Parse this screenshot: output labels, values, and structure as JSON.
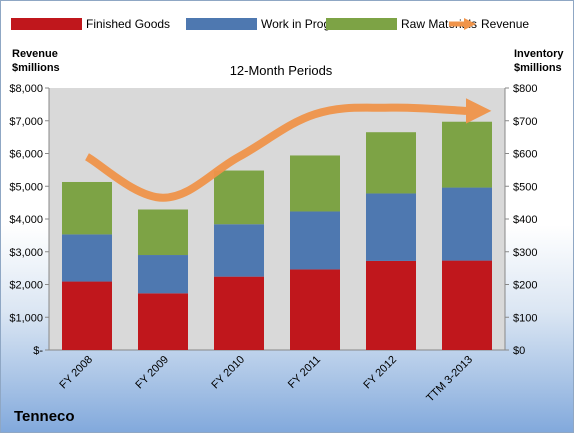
{
  "chart_data": {
    "type": "bar",
    "stacked": true,
    "title": "12-Month Periods",
    "company": "Tenneco",
    "categories": [
      "FY 2008",
      "FY 2009",
      "FY 2010",
      "FY 2011",
      "FY 2012",
      "TTM 3-2013"
    ],
    "series": [
      {
        "name": "Finished Goods",
        "axis": "right",
        "color": "#c0171c",
        "values": [
          209,
          173,
          224,
          246,
          272,
          273
        ]
      },
      {
        "name": "Work in Progress",
        "axis": "right",
        "color": "#4e78b0",
        "values": [
          144,
          117,
          160,
          177,
          206,
          223
        ]
      },
      {
        "name": "Raw Materials",
        "axis": "right",
        "color": "#7da345",
        "values": [
          160,
          139,
          164,
          171,
          187,
          201
        ]
      },
      {
        "name": "Revenue",
        "axis": "left",
        "type": "line",
        "color": "#f0944a",
        "values": [
          5900,
          4650,
          5900,
          7200,
          7400,
          7300
        ]
      }
    ],
    "left_axis": {
      "title_line1": "Revenue",
      "title_line2": "$millions",
      "ylim": [
        0,
        8000
      ],
      "tick_labels": [
        "$-",
        "$1,000",
        "$2,000",
        "$3,000",
        "$4,000",
        "$5,000",
        "$6,000",
        "$7,000",
        "$8,000"
      ]
    },
    "right_axis": {
      "title_line1": "Inventory",
      "title_line2": "$millions",
      "ylim": [
        0,
        800
      ],
      "tick_labels": [
        "$0",
        "$100",
        "$200",
        "$300",
        "$400",
        "$500",
        "$600",
        "$700",
        "$800"
      ]
    },
    "legend_position": "top",
    "grid": false,
    "plot_background": "#d9d9d9"
  }
}
